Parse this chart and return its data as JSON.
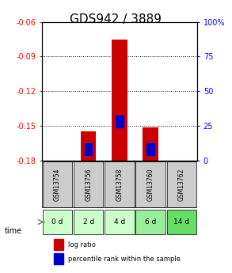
{
  "title": "GDS942 / 3889",
  "samples": [
    "GSM13754",
    "GSM13756",
    "GSM13758",
    "GSM13760",
    "GSM13762"
  ],
  "time_labels": [
    "0 d",
    "2 d",
    "4 d",
    "6 d",
    "14 d"
  ],
  "ylim_left": [
    -0.18,
    -0.06
  ],
  "ylim_right": [
    0,
    100
  ],
  "yticks_left": [
    -0.18,
    -0.15,
    -0.12,
    -0.09,
    -0.06
  ],
  "yticks_right": [
    0,
    25,
    50,
    75,
    100
  ],
  "ytick_labels_left": [
    "-0.18",
    "-0.15",
    "-0.12",
    "-0.09",
    "-0.06"
  ],
  "ytick_labels_right": [
    "0",
    "25",
    "50",
    "75",
    "100%"
  ],
  "log_ratio_values": [
    null,
    -0.155,
    -0.075,
    -0.151,
    null
  ],
  "percentile_values": [
    null,
    5,
    25,
    5,
    null
  ],
  "bar_bottom": -0.18,
  "bar_color": "#cc0000",
  "square_color": "#0000cc",
  "bar_width": 0.5,
  "grid_color": "#000000",
  "background_color": "#ffffff",
  "sample_box_color": "#cccccc",
  "time_box_colors": [
    "#ccffcc",
    "#ccffcc",
    "#ccffcc",
    "#99ee99",
    "#66dd66"
  ],
  "time_arrow_color": "#888888",
  "legend_log_color": "#cc0000",
  "legend_pct_color": "#0000cc",
  "title_fontsize": 11,
  "tick_fontsize": 7,
  "label_fontsize": 7
}
